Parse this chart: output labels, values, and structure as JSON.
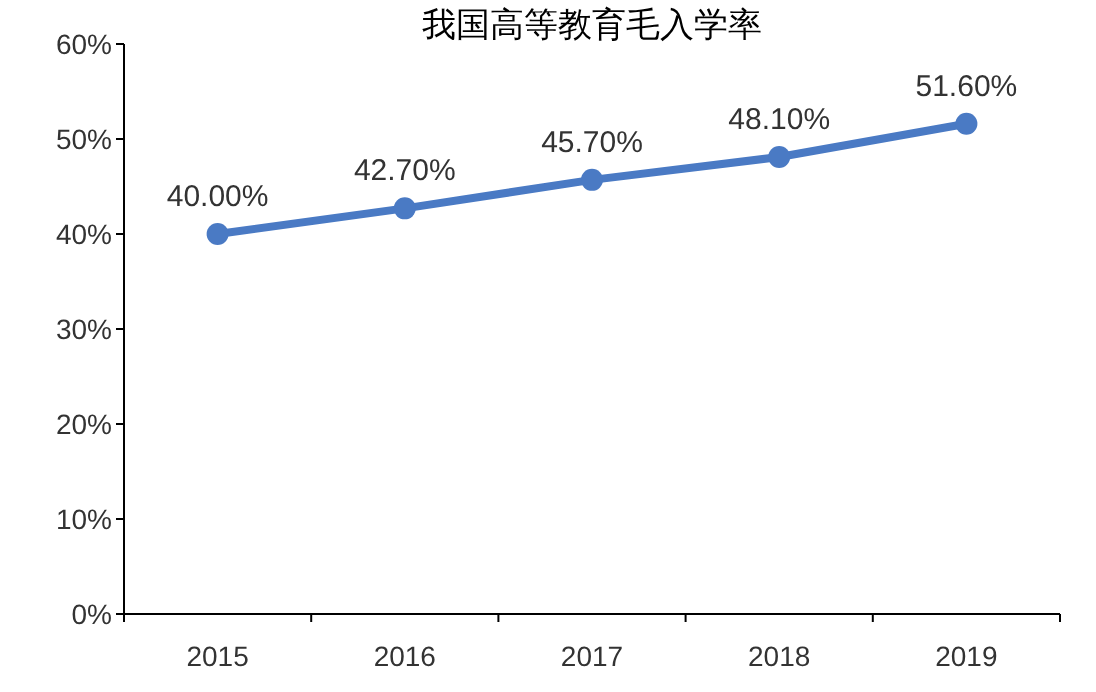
{
  "chart_data": {
    "type": "line",
    "title": "我国高等教育毛入学率",
    "categories": [
      "2015",
      "2016",
      "2017",
      "2018",
      "2019"
    ],
    "values": [
      40.0,
      42.7,
      45.7,
      48.1,
      51.6
    ],
    "value_labels": [
      "40.00%",
      "42.70%",
      "45.70%",
      "48.10%",
      "51.60%"
    ],
    "color": "#4a7ac4",
    "marker": "circle",
    "line_style": "solid",
    "grid": false,
    "ylim": [
      0,
      60
    ],
    "yticks": [
      {
        "value": 0,
        "label": "0%"
      },
      {
        "value": 10,
        "label": "10%"
      },
      {
        "value": 20,
        "label": "20%"
      },
      {
        "value": 30,
        "label": "30%"
      },
      {
        "value": 40,
        "label": "40%"
      },
      {
        "value": 50,
        "label": "50%"
      },
      {
        "value": 60,
        "label": "60%"
      }
    ]
  }
}
